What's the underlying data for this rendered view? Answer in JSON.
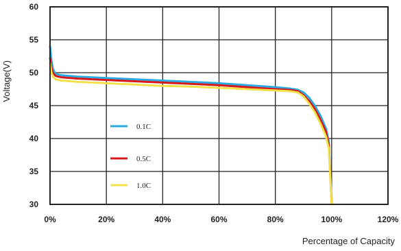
{
  "chart_data": {
    "type": "line",
    "title": "",
    "xlabel": "Percentage of Capacity",
    "ylabel": "Voltage(V)",
    "xlim": [
      0,
      120
    ],
    "ylim": [
      30,
      60
    ],
    "x_ticks": [
      0,
      20,
      40,
      60,
      80,
      100,
      120
    ],
    "x_tick_labels": [
      "0%",
      "20%",
      "40%",
      "60%",
      "80%",
      "100%",
      "120%"
    ],
    "y_ticks": [
      30,
      35,
      40,
      45,
      50,
      55,
      60
    ],
    "y_tick_labels": [
      "30",
      "35",
      "40",
      "45",
      "50",
      "55",
      "60"
    ],
    "grid": true,
    "legend_position": "left",
    "series": [
      {
        "name": "0.1C",
        "color": "#29abe2",
        "x": [
          0,
          0.5,
          1,
          2,
          4,
          10,
          20,
          30,
          40,
          50,
          60,
          70,
          80,
          85,
          88,
          90,
          92,
          94,
          96,
          98,
          99,
          100
        ],
        "y": [
          54.0,
          51.8,
          50.6,
          49.8,
          49.6,
          49.4,
          49.2,
          49.0,
          48.8,
          48.6,
          48.4,
          48.1,
          47.8,
          47.6,
          47.4,
          47.0,
          46.2,
          45.0,
          43.5,
          41.5,
          39.5,
          30.5
        ]
      },
      {
        "name": "0.5C",
        "color": "#d7191c",
        "x": [
          0,
          0.5,
          1,
          2,
          4,
          10,
          20,
          30,
          40,
          50,
          60,
          70,
          80,
          85,
          88,
          90,
          92,
          94,
          96,
          98,
          99,
          100
        ],
        "y": [
          52.2,
          50.8,
          50.0,
          49.5,
          49.3,
          49.1,
          48.9,
          48.7,
          48.5,
          48.3,
          48.1,
          47.8,
          47.5,
          47.4,
          47.2,
          46.6,
          45.7,
          44.5,
          42.9,
          41.0,
          39.0,
          30.2
        ]
      },
      {
        "name": "1.0C",
        "color": "#f2e14a",
        "x": [
          0,
          0.5,
          1,
          2,
          4,
          10,
          20,
          30,
          40,
          50,
          60,
          70,
          80,
          85,
          88,
          90,
          92,
          94,
          96,
          98,
          99,
          100
        ],
        "y": [
          51.5,
          50.0,
          49.4,
          49.0,
          48.8,
          48.6,
          48.4,
          48.2,
          48.0,
          47.9,
          47.7,
          47.5,
          47.3,
          47.2,
          47.0,
          46.4,
          45.3,
          44.0,
          42.3,
          40.3,
          38.5,
          30.0
        ]
      }
    ]
  }
}
